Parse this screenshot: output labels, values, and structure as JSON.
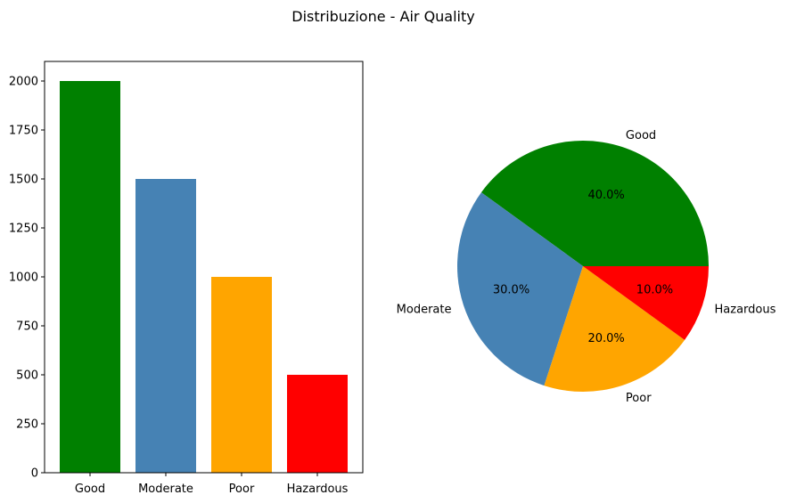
{
  "figure": {
    "title": "Distribuzione - Air Quality"
  },
  "chart_data": [
    {
      "type": "bar",
      "categories": [
        "Good",
        "Moderate",
        "Poor",
        "Hazardous"
      ],
      "values": [
        2000,
        1500,
        1000,
        500
      ],
      "colors": [
        "#008000",
        "#4682b4",
        "#ffa500",
        "#ff0000"
      ],
      "ylim": [
        0,
        2100
      ],
      "yticks": [
        0,
        250,
        500,
        750,
        1000,
        1250,
        1500,
        1750,
        2000
      ],
      "grid": false
    },
    {
      "type": "pie",
      "labels": [
        "Good",
        "Moderate",
        "Poor",
        "Hazardous"
      ],
      "values": [
        40.0,
        30.0,
        20.0,
        10.0
      ],
      "percent_labels": [
        "40.0%",
        "30.0%",
        "20.0%",
        "10.0%"
      ],
      "colors": [
        "#008000",
        "#4682b4",
        "#ffa500",
        "#ff0000"
      ],
      "start_angle_deg": 0,
      "direction": "counterclockwise"
    }
  ]
}
